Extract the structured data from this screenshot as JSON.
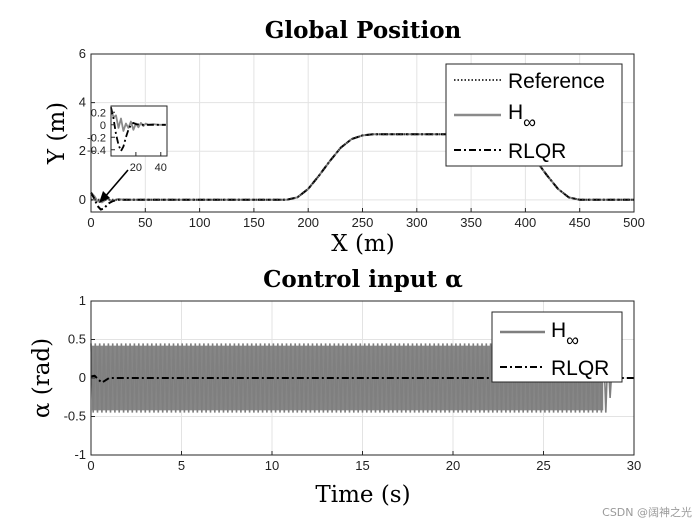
{
  "chart_data": [
    {
      "type": "line",
      "title": "Global Position",
      "xlabel": "X (m)",
      "ylabel": "Y (m)",
      "xlim": [
        0,
        500
      ],
      "ylim": [
        -0.5,
        6
      ],
      "xticks": [
        0,
        50,
        100,
        150,
        200,
        250,
        300,
        350,
        400,
        450,
        500
      ],
      "yticks": [
        0,
        2,
        4,
        6
      ],
      "grid": true,
      "legend": "top-right",
      "series": [
        {
          "name": "Reference",
          "style": "dotted",
          "color": "#3a3a3a",
          "x": [
            0,
            180,
            190,
            200,
            210,
            220,
            230,
            240,
            250,
            260,
            380,
            390,
            400,
            410,
            420,
            430,
            440,
            450,
            500
          ],
          "y": [
            0,
            0,
            0.1,
            0.45,
            1.0,
            1.6,
            2.15,
            2.5,
            2.65,
            2.7,
            2.7,
            2.6,
            2.2,
            1.6,
            1.0,
            0.45,
            0.1,
            0,
            0
          ]
        },
        {
          "name": "H∞",
          "legend_main": "H",
          "legend_sub": "∞",
          "style": "solid",
          "color": "#8a8a8a",
          "x": [
            0,
            3,
            6,
            10,
            15,
            20,
            25,
            30,
            40,
            180,
            190,
            200,
            210,
            220,
            230,
            240,
            250,
            260,
            380,
            390,
            400,
            410,
            420,
            430,
            440,
            450,
            500
          ],
          "y": [
            0.3,
            0.15,
            -0.05,
            -0.1,
            0.05,
            -0.05,
            0.03,
            0,
            0,
            0,
            0.1,
            0.45,
            1.0,
            1.6,
            2.15,
            2.5,
            2.65,
            2.7,
            2.7,
            2.6,
            2.2,
            1.6,
            1.0,
            0.45,
            0.1,
            0,
            0
          ]
        },
        {
          "name": "RLQR",
          "style": "dashdot",
          "color": "#000000",
          "x": [
            0,
            3,
            6,
            9,
            12,
            16,
            20,
            25,
            30,
            40,
            180,
            190,
            200,
            210,
            220,
            230,
            240,
            250,
            260,
            380,
            390,
            400,
            410,
            420,
            430,
            440,
            450,
            500
          ],
          "y": [
            0.3,
            0.05,
            -0.25,
            -0.4,
            -0.35,
            -0.15,
            -0.05,
            0,
            0,
            0,
            0,
            0.1,
            0.45,
            1.0,
            1.6,
            2.15,
            2.5,
            2.65,
            2.7,
            2.7,
            2.6,
            2.2,
            1.6,
            1.0,
            0.45,
            0.1,
            0,
            0
          ]
        }
      ],
      "inset": {
        "xlim": [
          0,
          45
        ],
        "ylim": [
          -0.5,
          0.3
        ],
        "xticks": [
          20,
          40
        ],
        "yticks": [
          0.2,
          0,
          -0.2,
          -0.4
        ],
        "series": [
          {
            "name": "H∞",
            "style": "solid",
            "color": "#8a8a8a",
            "x": [
              0,
              2,
              4,
              6,
              8,
              10,
              12,
              14,
              16,
              18,
              20,
              22,
              24,
              26,
              28,
              30,
              34,
              38,
              44
            ],
            "y": [
              0.25,
              0.12,
              0.15,
              -0.05,
              0.1,
              -0.1,
              0.02,
              -0.05,
              0.05,
              -0.08,
              0.02,
              -0.04,
              0.03,
              -0.02,
              0.02,
              0,
              0.01,
              0,
              0
            ]
          },
          {
            "name": "RLQR",
            "style": "dashdot",
            "color": "#000000",
            "x": [
              0,
              2,
              4,
              6,
              8,
              10,
              12,
              14,
              16,
              18,
              20,
              24,
              28,
              34,
              44
            ],
            "y": [
              0.28,
              0.1,
              -0.15,
              -0.32,
              -0.42,
              -0.35,
              -0.2,
              -0.08,
              0,
              0.03,
              0.01,
              0,
              0,
              0,
              0
            ]
          }
        ]
      }
    },
    {
      "type": "line",
      "title": "Control input α",
      "xlabel": "Time (s)",
      "ylabel": "α (rad)",
      "xlim": [
        0,
        30
      ],
      "ylim": [
        -1,
        1
      ],
      "xticks": [
        0,
        5,
        10,
        15,
        20,
        25,
        30
      ],
      "yticks": [
        -1,
        -0.5,
        0,
        0.5,
        1
      ],
      "grid": true,
      "legend": "top-right",
      "series": [
        {
          "name": "H∞",
          "legend_main": "H",
          "legend_sub": "∞",
          "style": "solid",
          "color": "#7f7f7f",
          "x_start": 0,
          "x_end": 28.9,
          "amplitude": 0.45,
          "period": 0.24,
          "tail_x": [
            28.5,
            28.9
          ],
          "tail_amplitude": [
            0.35,
            0.15
          ]
        },
        {
          "name": "RLQR",
          "style": "dashdot",
          "color": "#000000",
          "x": [
            0,
            0.2,
            0.4,
            0.6,
            0.8,
            1.0,
            1.5,
            30
          ],
          "y": [
            0.02,
            0.03,
            -0.02,
            -0.06,
            -0.03,
            0,
            0,
            0
          ]
        }
      ]
    }
  ],
  "watermark": "CSDN @阔神之光"
}
